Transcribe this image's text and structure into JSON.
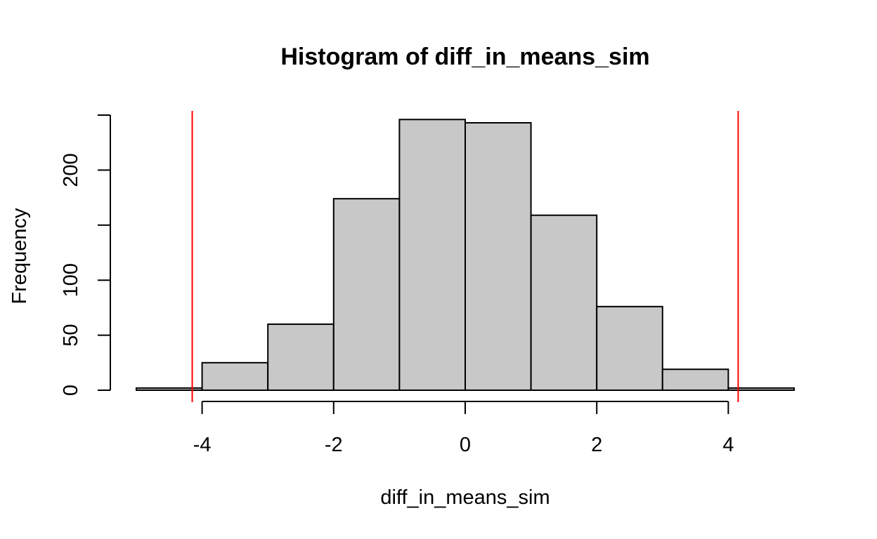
{
  "chart_data": {
    "type": "bar",
    "title": "Histogram of diff_in_means_sim",
    "xlabel": "diff_in_means_sim",
    "ylabel": "Frequency",
    "xlim": [
      -5,
      5
    ],
    "ylim": [
      0,
      250
    ],
    "x_ticks": [
      -4,
      -2,
      0,
      2,
      4
    ],
    "y_ticks": [
      0,
      50,
      100,
      150,
      200,
      250
    ],
    "y_tick_labels": [
      "0",
      "50",
      "100",
      "",
      "200",
      ""
    ],
    "bins": [
      {
        "start": -5,
        "end": -4,
        "count": 2
      },
      {
        "start": -4,
        "end": -3,
        "count": 25
      },
      {
        "start": -3,
        "end": -2,
        "count": 60
      },
      {
        "start": -2,
        "end": -1,
        "count": 174
      },
      {
        "start": -1,
        "end": 0,
        "count": 246
      },
      {
        "start": 0,
        "end": 1,
        "count": 243
      },
      {
        "start": 1,
        "end": 2,
        "count": 159
      },
      {
        "start": 2,
        "end": 3,
        "count": 76
      },
      {
        "start": 3,
        "end": 4,
        "count": 19
      },
      {
        "start": 4,
        "end": 5,
        "count": 2
      }
    ],
    "bar_fill": "#c8c8c8",
    "reference_lines": {
      "x": [
        -4.15,
        4.15
      ],
      "color": "#ff0000"
    },
    "grid": false,
    "legend": "none"
  }
}
